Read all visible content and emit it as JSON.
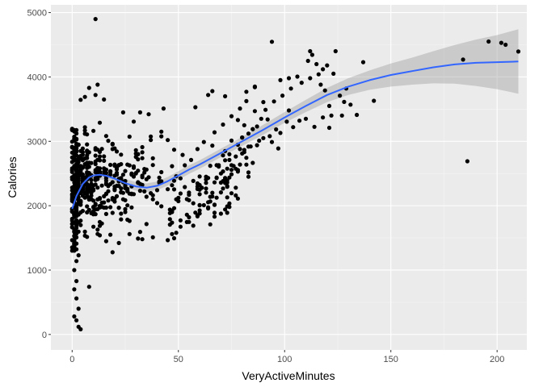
{
  "colors": {
    "panel_background": "#ebebeb",
    "grid_major": "#ffffff",
    "grid_minor": "#f5f5f5",
    "points": "#000000",
    "smooth_line": "#3366ff",
    "confidence_band": "#999999"
  },
  "chart_data": {
    "type": "scatter",
    "title": "",
    "xlabel": "VeryActiveMinutes",
    "ylabel": "Calories",
    "xlim": [
      -10,
      214
    ],
    "ylim": [
      -240,
      5120
    ],
    "xticks": [
      0,
      50,
      100,
      150,
      200
    ],
    "yticks": [
      0,
      1000,
      2000,
      3000,
      4000,
      5000
    ],
    "grid": true,
    "legend": "none",
    "seed": 7,
    "points": [
      [
        11,
        4900
      ],
      [
        94,
        4547
      ],
      [
        112,
        4400
      ],
      [
        124,
        4400
      ],
      [
        113,
        4343
      ],
      [
        111,
        4250
      ],
      [
        137,
        4230
      ],
      [
        115,
        4200
      ],
      [
        120,
        4180
      ],
      [
        118,
        4120
      ],
      [
        123,
        4050
      ],
      [
        116,
        4040
      ],
      [
        106,
        4005
      ],
      [
        102,
        3980
      ],
      [
        98,
        3950
      ],
      [
        86,
        3840
      ],
      [
        128,
        3612
      ],
      [
        131,
        3570
      ],
      [
        121,
        3550
      ],
      [
        134,
        3410
      ],
      [
        122,
        3400
      ],
      [
        118,
        3370
      ],
      [
        110,
        3350
      ],
      [
        107,
        3320
      ],
      [
        101,
        3305
      ],
      [
        114,
        3225
      ],
      [
        121,
        3210
      ],
      [
        96,
        3185
      ],
      [
        98,
        3130
      ],
      [
        93,
        3080
      ],
      [
        90,
        3050
      ],
      [
        88,
        3010
      ],
      [
        94,
        2990
      ],
      [
        87,
        2940
      ],
      [
        84,
        2920
      ],
      [
        97,
        2890
      ],
      [
        79,
        2880
      ],
      [
        72,
        2850
      ],
      [
        74,
        2800
      ],
      [
        69,
        2630
      ],
      [
        65,
        2620
      ],
      [
        70,
        2500
      ],
      [
        63,
        2450
      ],
      [
        68,
        2430
      ],
      [
        61,
        2280
      ],
      [
        59,
        2260
      ],
      [
        77,
        2160
      ],
      [
        74,
        1980
      ],
      [
        73,
        1890
      ],
      [
        67,
        1830
      ],
      [
        54,
        1860
      ],
      [
        46,
        1790
      ],
      [
        49,
        1580
      ],
      [
        45,
        1465
      ],
      [
        48,
        1495
      ],
      [
        38,
        1510
      ],
      [
        33,
        1480
      ],
      [
        31,
        1490
      ],
      [
        27,
        1560
      ],
      [
        22,
        1420
      ],
      [
        18,
        1550
      ],
      [
        16,
        1450
      ],
      [
        13,
        1540
      ],
      [
        8,
        740
      ],
      [
        4,
        80
      ],
      [
        3,
        120
      ],
      [
        2,
        220
      ],
      [
        1,
        280
      ],
      [
        3,
        400
      ],
      [
        2,
        560
      ],
      [
        1,
        700
      ],
      [
        2,
        830
      ],
      [
        1,
        1000
      ],
      [
        2,
        1140
      ],
      [
        3,
        1230
      ],
      [
        12,
        3880
      ],
      [
        8,
        3830
      ],
      [
        11,
        3720
      ],
      [
        6,
        3690
      ],
      [
        15,
        3650
      ],
      [
        4,
        3645
      ],
      [
        24,
        3450
      ],
      [
        36,
        3420
      ],
      [
        32,
        3450
      ],
      [
        43,
        3510
      ],
      [
        58,
        3530
      ],
      [
        64,
        3720
      ],
      [
        66,
        3780
      ],
      [
        72,
        3700
      ],
      [
        82,
        3770
      ],
      [
        86,
        3850
      ],
      [
        196,
        4550
      ],
      [
        202,
        4530
      ],
      [
        204,
        4500
      ],
      [
        210,
        4395
      ],
      [
        184,
        4270
      ],
      [
        186,
        2690
      ],
      [
        142,
        3630
      ],
      [
        127,
        3400
      ],
      [
        102,
        3480
      ],
      [
        104,
        3220
      ],
      [
        83,
        3120
      ],
      [
        80,
        3060
      ],
      [
        87,
        3230
      ],
      [
        92,
        3340
      ],
      [
        86,
        3470
      ],
      [
        79,
        3510
      ],
      [
        90,
        3610
      ],
      [
        53,
        2290
      ],
      [
        51,
        2190
      ],
      [
        40,
        2040
      ],
      [
        42,
        1990
      ],
      [
        55,
        1820
      ],
      [
        57,
        1690
      ],
      [
        60,
        2010
      ],
      [
        50,
        2070
      ],
      [
        35,
        2140
      ],
      [
        28,
        2180
      ],
      [
        26,
        2260
      ],
      [
        9,
        2100
      ],
      [
        7,
        2210
      ],
      [
        5,
        2310
      ],
      [
        29,
        2610
      ],
      [
        31,
        2720
      ],
      [
        33,
        2910
      ],
      [
        37,
        3020
      ],
      [
        42,
        3150
      ],
      [
        45,
        3020
      ],
      [
        48,
        2870
      ],
      [
        52,
        2790
      ],
      [
        56,
        2710
      ],
      [
        59,
        2880
      ],
      [
        62,
        2990
      ],
      [
        67,
        3140
      ],
      [
        71,
        3260
      ],
      [
        75,
        3390
      ],
      [
        78,
        3330
      ],
      [
        81,
        3250
      ],
      [
        85,
        3190
      ],
      [
        89,
        3350
      ],
      [
        91,
        3490
      ],
      [
        95,
        3620
      ],
      [
        99,
        3710
      ],
      [
        103,
        3820
      ],
      [
        108,
        3910
      ],
      [
        112,
        3980
      ],
      [
        117,
        3880
      ],
      [
        119,
        3790
      ],
      [
        126,
        3710
      ],
      [
        129,
        3820
      ]
    ],
    "smooth": {
      "x": [
        0,
        2,
        5,
        8,
        10,
        13,
        16,
        20,
        25,
        30,
        35,
        40,
        45,
        50,
        55,
        60,
        70,
        80,
        90,
        100,
        110,
        120,
        130,
        140,
        150,
        160,
        170,
        180,
        190,
        200,
        210
      ],
      "y": [
        1950,
        2150,
        2340,
        2440,
        2470,
        2480,
        2465,
        2420,
        2350,
        2300,
        2280,
        2310,
        2380,
        2470,
        2560,
        2640,
        2820,
        3000,
        3180,
        3370,
        3550,
        3720,
        3850,
        3950,
        4030,
        4090,
        4150,
        4195,
        4220,
        4230,
        4240
      ],
      "se": [
        110,
        100,
        90,
        80,
        75,
        72,
        70,
        68,
        66,
        66,
        66,
        66,
        66,
        66,
        66,
        66,
        66,
        70,
        76,
        84,
        95,
        110,
        130,
        150,
        180,
        210,
        250,
        300,
        360,
        420,
        500
      ]
    }
  }
}
